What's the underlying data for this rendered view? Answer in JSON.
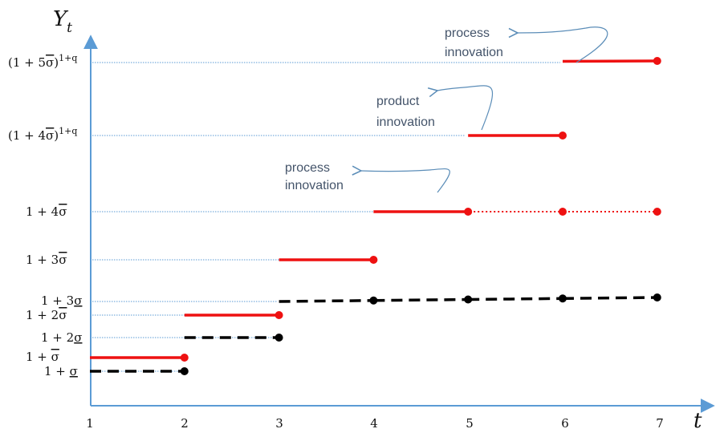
{
  "axes": {
    "y_title": "Y",
    "y_title_sub": "t",
    "x_title": "t",
    "x_ticks": [
      "1",
      "2",
      "3",
      "4",
      "5",
      "6",
      "7"
    ],
    "axis_color": "#5b9bd5"
  },
  "levels": [
    {
      "id": "l1",
      "prefix": "1 + ",
      "sym": "σ",
      "deco": "under",
      "sup": ""
    },
    {
      "id": "l2",
      "prefix": "1 + ",
      "sym": "σ",
      "deco": "over",
      "sup": ""
    },
    {
      "id": "l3",
      "prefix": "1 + 2",
      "sym": "σ",
      "deco": "under",
      "sup": ""
    },
    {
      "id": "l4",
      "prefix": "1 + 2",
      "sym": "σ",
      "deco": "over",
      "sup": ""
    },
    {
      "id": "l5",
      "prefix": "1 + 3",
      "sym": "σ",
      "deco": "under",
      "sup": ""
    },
    {
      "id": "l6",
      "prefix": "1 + 3",
      "sym": "σ",
      "deco": "over",
      "sup": ""
    },
    {
      "id": "l7",
      "prefix": "1 + 4",
      "sym": "σ",
      "deco": "over",
      "sup": ""
    },
    {
      "id": "l8",
      "prefix": "(1 + 4",
      "sym": "σ",
      "deco": "over",
      "suffix": ")",
      "sup": "1+q"
    },
    {
      "id": "l9",
      "prefix": "(1 + 5",
      "sym": "σ",
      "deco": "over",
      "suffix": ")",
      "sup": "1+q"
    }
  ],
  "annotations": [
    {
      "id": "a1",
      "line1": "process",
      "line2": "innovation"
    },
    {
      "id": "a2",
      "line1": "product",
      "line2": "innovation"
    },
    {
      "id": "a3",
      "line1": "process",
      "line2": "innovation"
    }
  ],
  "colors": {
    "red": "#ee1111",
    "black": "#000000",
    "guide": "#5b9bd5",
    "arrow": "#5b8db8"
  },
  "segments": [
    {
      "level": "l1",
      "x0": 1,
      "x1": 2,
      "color": "black",
      "style": "dashed"
    },
    {
      "level": "l2",
      "x0": 1,
      "x1": 2,
      "color": "red",
      "style": "solid"
    },
    {
      "level": "l3",
      "x0": 2,
      "x1": 3,
      "color": "black",
      "style": "dashed"
    },
    {
      "level": "l4",
      "x0": 2,
      "x1": 3,
      "color": "red",
      "style": "solid"
    },
    {
      "level": "l5",
      "x0": 3,
      "x1": 4,
      "color": "black",
      "style": "dashed"
    },
    {
      "level": "l5",
      "x0": 4,
      "x1": 5,
      "color": "black",
      "style": "dashed"
    },
    {
      "level": "l5",
      "x0": 5,
      "x1": 6,
      "color": "black",
      "style": "dashed"
    },
    {
      "level": "l5",
      "x0": 6,
      "x1": 7,
      "color": "black",
      "style": "dashed"
    },
    {
      "level": "l6",
      "x0": 3,
      "x1": 4,
      "color": "red",
      "style": "solid"
    },
    {
      "level": "l7",
      "x0": 4,
      "x1": 5,
      "color": "red",
      "style": "solid"
    },
    {
      "level": "l7",
      "x0": 5,
      "x1": 6,
      "color": "red",
      "style": "dotted"
    },
    {
      "level": "l7",
      "x0": 6,
      "x1": 7,
      "color": "red",
      "style": "dotted"
    },
    {
      "level": "l8",
      "x0": 5,
      "x1": 6,
      "color": "red",
      "style": "solid"
    },
    {
      "level": "l9",
      "x0": 6,
      "x1": 7,
      "color": "red",
      "style": "solid"
    }
  ]
}
